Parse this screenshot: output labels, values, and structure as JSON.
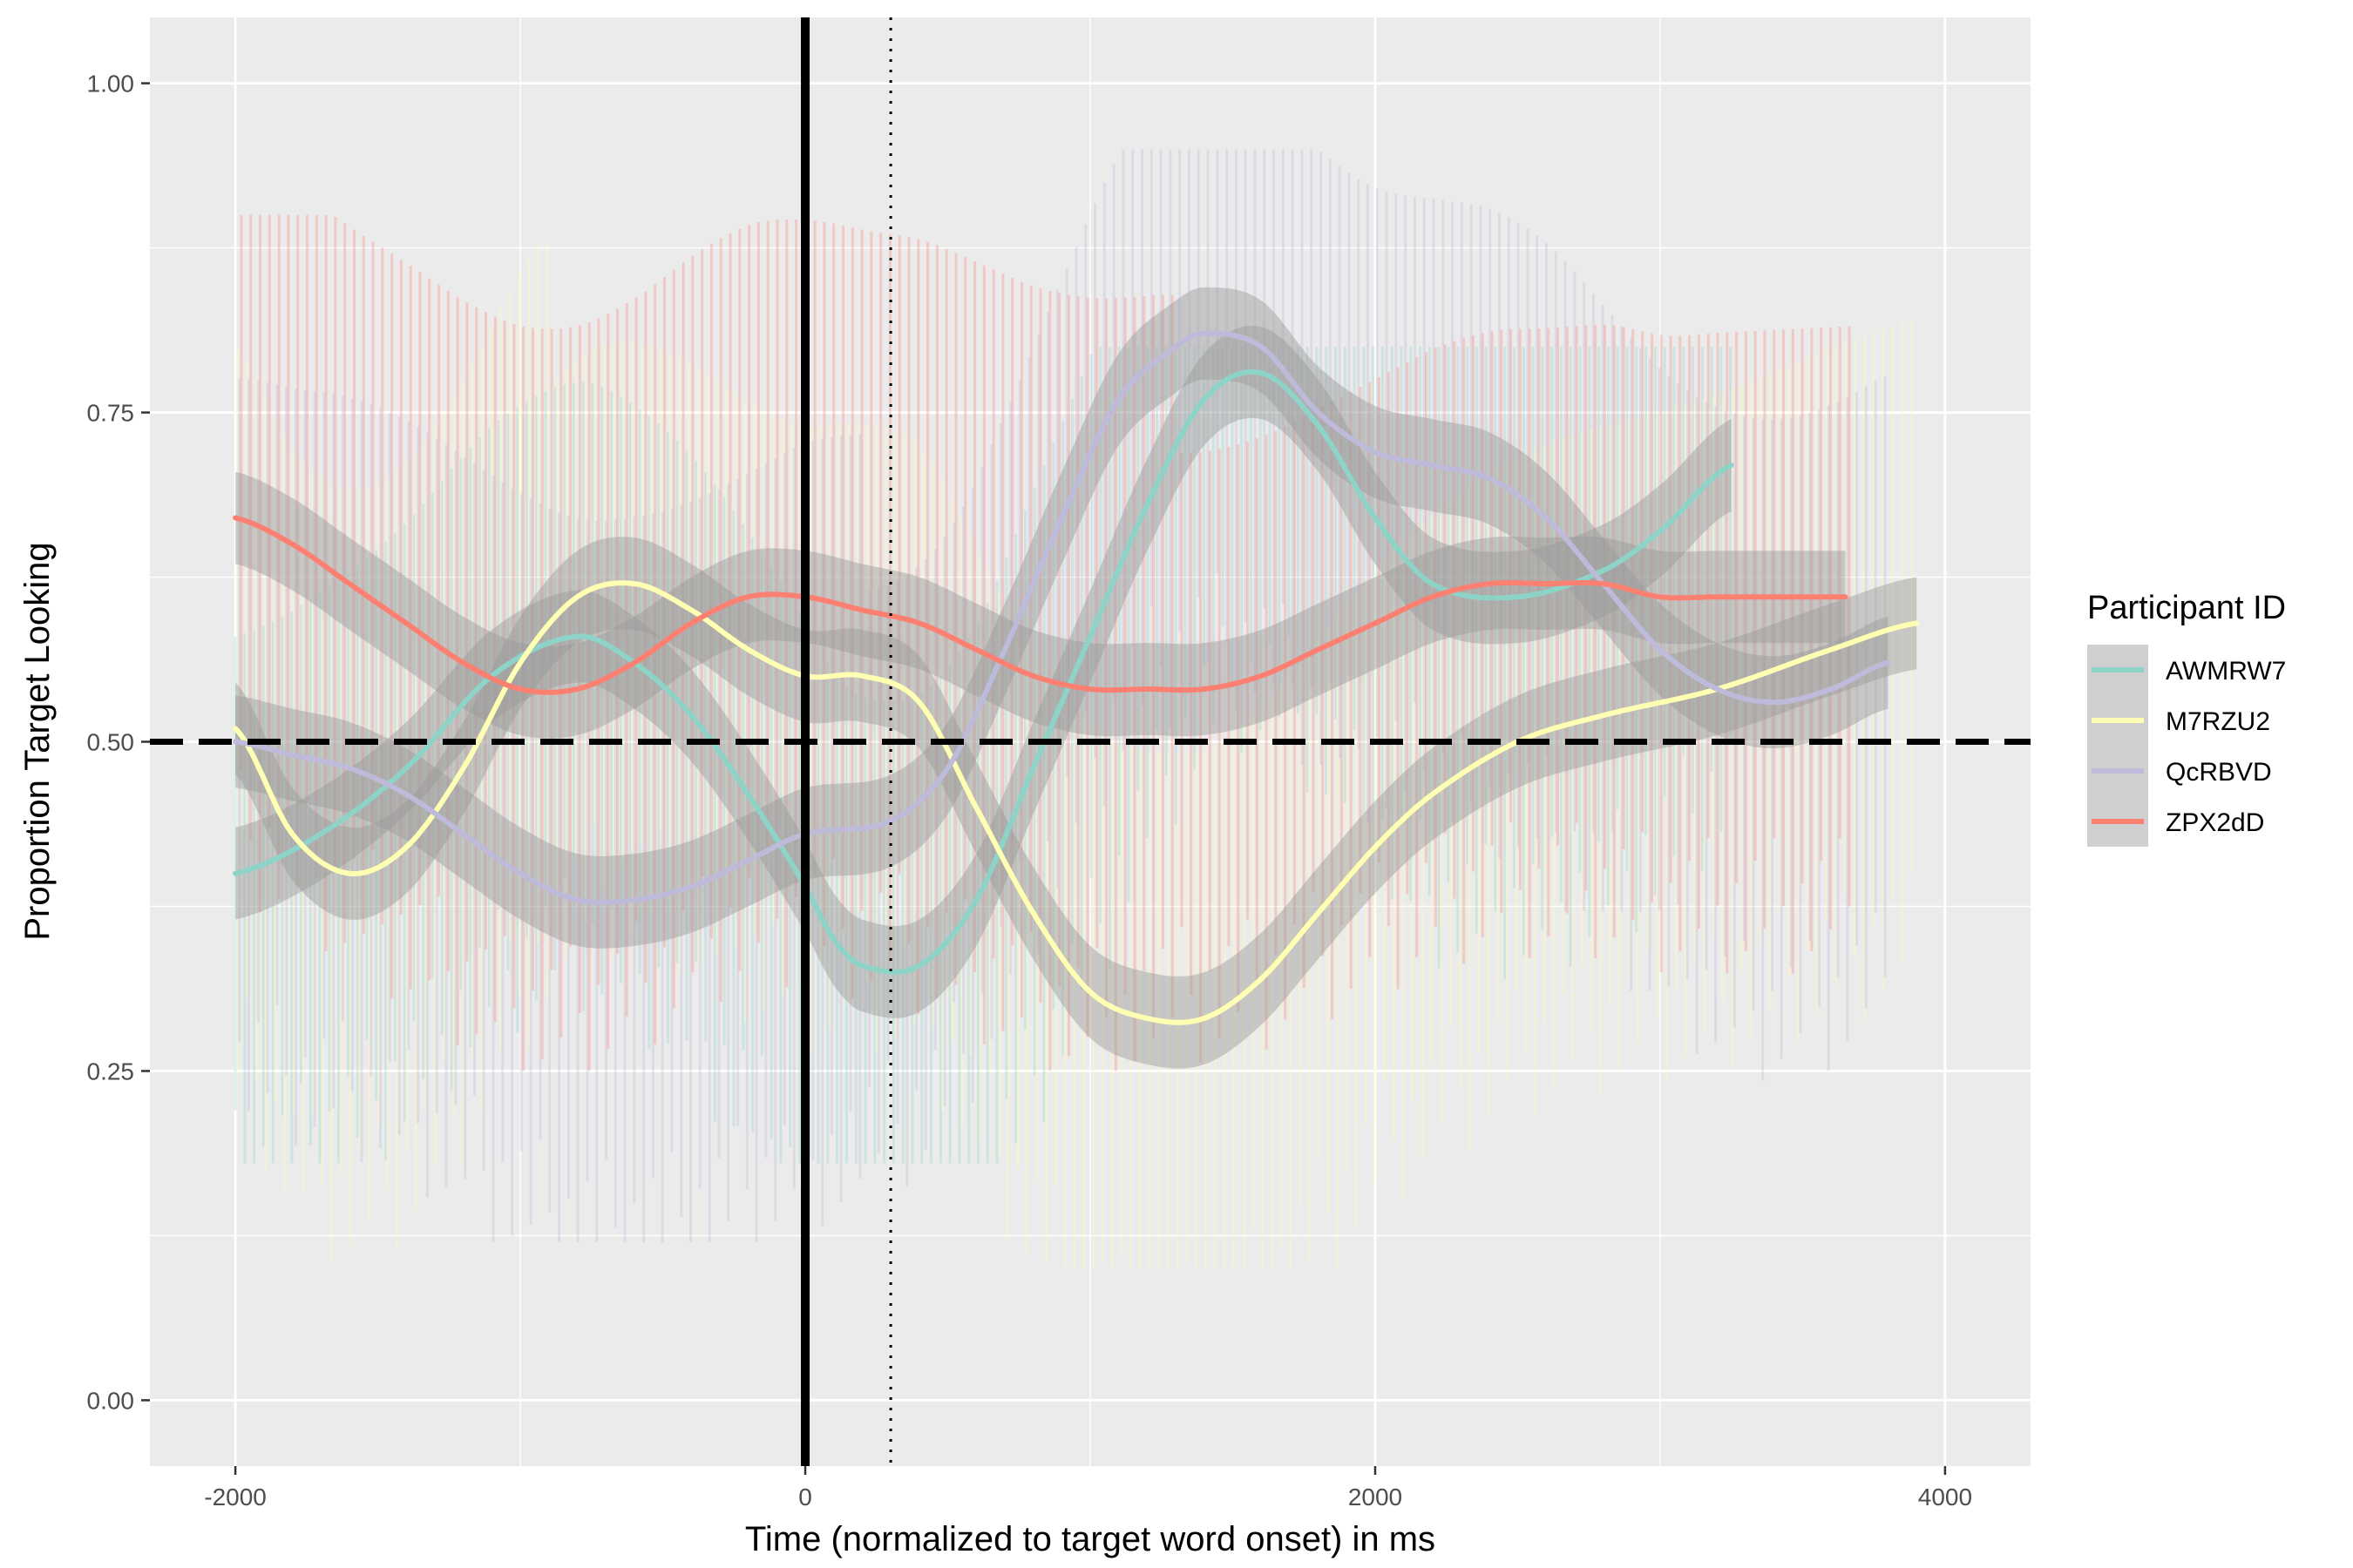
{
  "chart_data": {
    "type": "line",
    "xlabel": "Time (normalized to target word onset) in ms",
    "ylabel": "Proportion Target Looking",
    "xlim": [
      -2300,
      4300
    ],
    "ylim": [
      -0.05,
      1.05
    ],
    "x_ticks": [
      -2000,
      0,
      2000,
      4000
    ],
    "x_tick_labels": [
      "-2000",
      "0",
      "2000",
      "4000"
    ],
    "y_ticks": [
      0,
      0.25,
      0.5,
      0.75,
      1.0
    ],
    "y_tick_labels": [
      "0.00",
      "0.25",
      "0.50",
      "0.75",
      "1.00"
    ],
    "grid": true,
    "legend_title": "Participant ID",
    "legend_position": "right",
    "reference_lines": [
      {
        "orientation": "horizontal",
        "value": 0.5,
        "style": "dashed"
      },
      {
        "orientation": "vertical",
        "value": 0,
        "style": "solid"
      },
      {
        "orientation": "vertical",
        "value": 300,
        "style": "dotted"
      }
    ],
    "confidence_band": 0.035,
    "series": [
      {
        "name": "AWMRW7",
        "color": "#8dd3c7",
        "x": [
          -2000,
          -1700,
          -1400,
          -1100,
          -800,
          -600,
          -400,
          -200,
          0,
          100,
          200,
          400,
          600,
          800,
          1000,
          1200,
          1400,
          1600,
          1800,
          2000,
          2200,
          2500,
          2800,
          3000,
          3250
        ],
        "y": [
          0.4,
          0.43,
          0.48,
          0.55,
          0.58,
          0.56,
          0.52,
          0.46,
          0.39,
          0.35,
          0.33,
          0.33,
          0.38,
          0.48,
          0.58,
          0.68,
          0.76,
          0.78,
          0.74,
          0.67,
          0.62,
          0.61,
          0.63,
          0.66,
          0.71
        ],
        "range_low": 0.18,
        "range_high": 0.8,
        "range_end": 3250
      },
      {
        "name": "M7RZU2",
        "color": "#ffffb3",
        "x": [
          -2000,
          -1800,
          -1600,
          -1400,
          -1200,
          -1000,
          -800,
          -600,
          -400,
          -200,
          0,
          200,
          400,
          600,
          800,
          1000,
          1200,
          1400,
          1600,
          1800,
          2000,
          2200,
          2500,
          2800,
          3200,
          3600,
          3900
        ],
        "y": [
          0.51,
          0.43,
          0.4,
          0.42,
          0.48,
          0.56,
          0.61,
          0.62,
          0.6,
          0.57,
          0.55,
          0.55,
          0.53,
          0.45,
          0.37,
          0.31,
          0.29,
          0.29,
          0.32,
          0.37,
          0.42,
          0.46,
          0.5,
          0.52,
          0.54,
          0.57,
          0.59
        ],
        "range_low": 0.1,
        "range_high": 0.88,
        "range_end": 3900
      },
      {
        "name": "QcRBVD",
        "color": "#bebada",
        "x": [
          -2000,
          -1800,
          -1600,
          -1400,
          -1200,
          -1000,
          -800,
          -600,
          -400,
          -200,
          0,
          300,
          500,
          700,
          900,
          1100,
          1300,
          1400,
          1600,
          1800,
          2000,
          2200,
          2400,
          2600,
          2800,
          3000,
          3200,
          3400,
          3600,
          3800
        ],
        "y": [
          0.5,
          0.49,
          0.48,
          0.46,
          0.43,
          0.4,
          0.38,
          0.38,
          0.39,
          0.41,
          0.43,
          0.44,
          0.48,
          0.57,
          0.67,
          0.76,
          0.8,
          0.81,
          0.8,
          0.75,
          0.72,
          0.71,
          0.7,
          0.67,
          0.62,
          0.57,
          0.54,
          0.53,
          0.54,
          0.56
        ],
        "range_low": 0.12,
        "range_high": 0.95,
        "range_end": 3800
      },
      {
        "name": "ZPX2dD",
        "color": "#fb8072",
        "x": [
          -2000,
          -1800,
          -1600,
          -1400,
          -1200,
          -1000,
          -800,
          -600,
          -400,
          -200,
          0,
          200,
          400,
          600,
          800,
          1000,
          1200,
          1400,
          1600,
          1800,
          2000,
          2200,
          2400,
          2600,
          2800,
          3000,
          3200,
          3400,
          3650
        ],
        "y": [
          0.67,
          0.65,
          0.62,
          0.59,
          0.56,
          0.54,
          0.54,
          0.56,
          0.59,
          0.61,
          0.61,
          0.6,
          0.59,
          0.57,
          0.55,
          0.54,
          0.54,
          0.54,
          0.55,
          0.57,
          0.59,
          0.61,
          0.62,
          0.62,
          0.62,
          0.61,
          0.61,
          0.61,
          0.61
        ],
        "range_low": 0.25,
        "range_high": 0.9,
        "range_end": 3650
      }
    ]
  }
}
